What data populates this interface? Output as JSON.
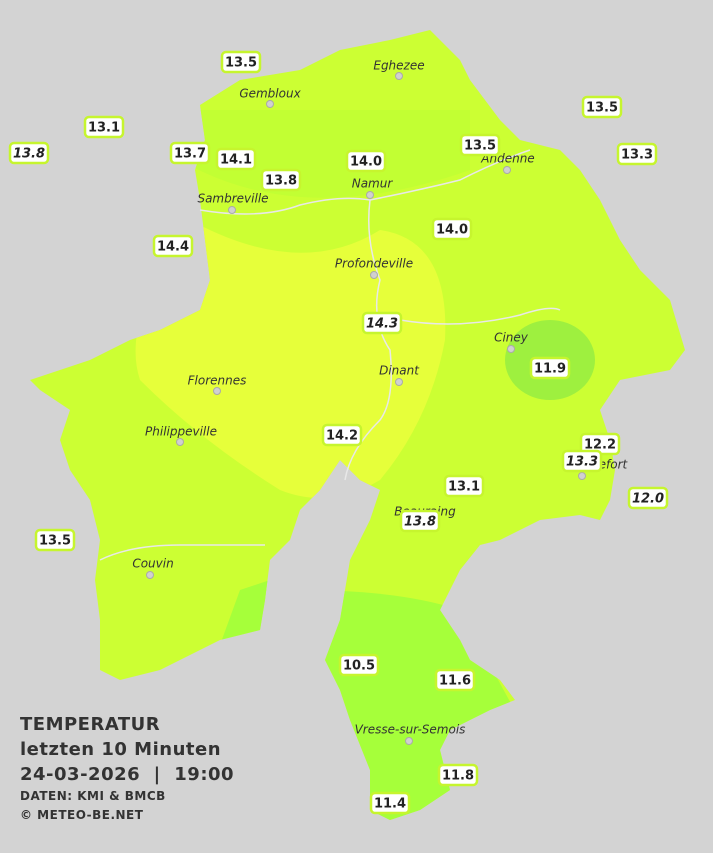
{
  "map": {
    "title": "TEMPERATUR",
    "subtitle": "letzten 10 Minuten",
    "timestamp": "24-03-2026  |  19:00",
    "source": "DATEN: KMI & BMCB",
    "copyright": "© METEO-BE.NET",
    "cities": [
      "Eghezee",
      "Gembloux",
      "Andenne",
      "Namur",
      "Sambreville",
      "Profondeville",
      "Ciney",
      "Dinant",
      "Florennes",
      "Philippeville",
      "Rochefort",
      "Beauraing",
      "Couvin",
      "Vresse-sur-Semois"
    ],
    "stations": [
      "13.5",
      "13.1",
      "13.8",
      "13.7",
      "14.1",
      "13.8",
      "14.0",
      "13.5",
      "13.5",
      "13.3",
      "14.4",
      "14.0",
      "14.3",
      "11.9",
      "14.2",
      "12.2",
      "13.3",
      "12.0",
      "13.1",
      "13.8",
      "13.5",
      "10.5",
      "11.6",
      "11.8",
      "11.4"
    ]
  }
}
